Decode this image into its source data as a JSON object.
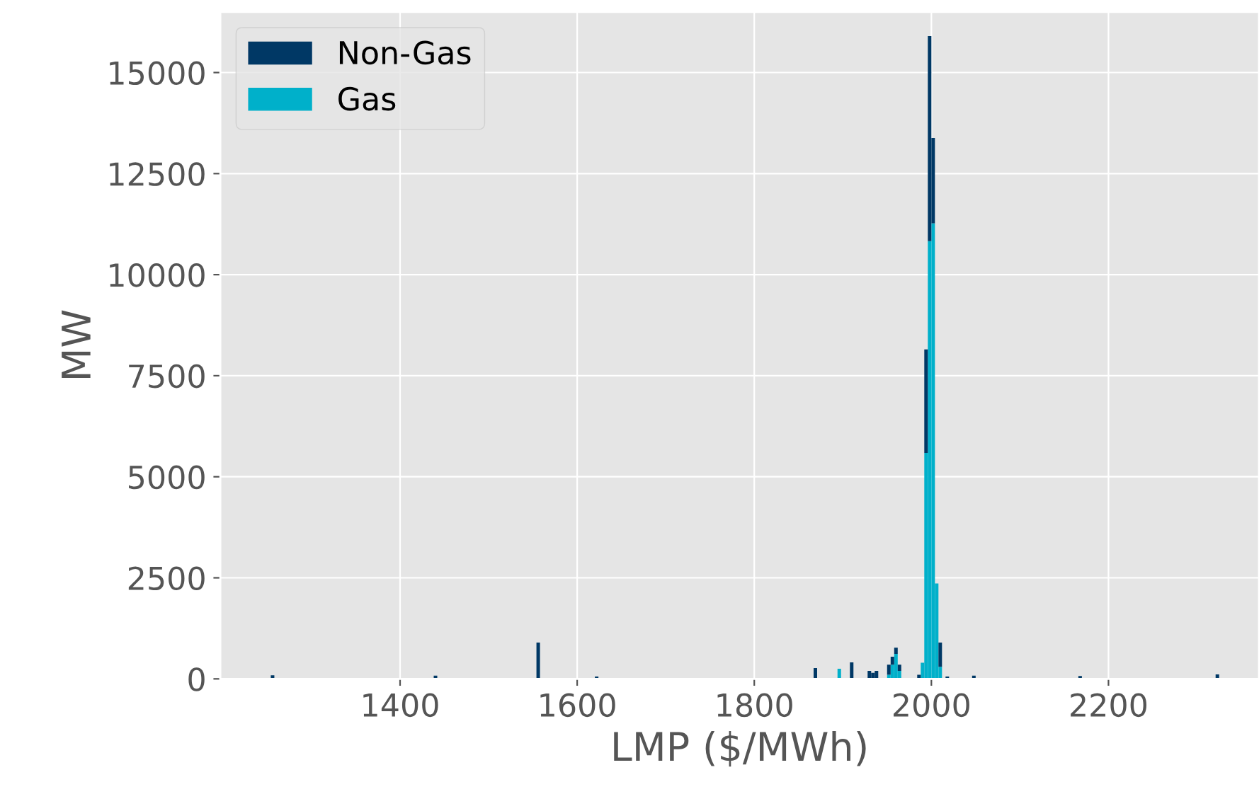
{
  "chart_data": {
    "type": "bar",
    "stacked": true,
    "xlabel": "LMP ($/MWh)",
    "ylabel": "MW",
    "x": [
      1256,
      1440,
      1556,
      1622,
      1869,
      1896,
      1910,
      1930,
      1934,
      1938,
      1952,
      1956,
      1960,
      1964,
      1986,
      1990,
      1994,
      1998,
      2002,
      2006,
      2010,
      2018,
      2048,
      2168,
      2323
    ],
    "series": [
      {
        "name": "Gas",
        "color": "#00b0ca",
        "values": [
          0,
          0,
          0,
          0,
          0,
          250,
          0,
          0,
          0,
          0,
          100,
          350,
          620,
          200,
          0,
          400,
          5590,
          10830,
          11270,
          2360,
          300,
          0,
          0,
          0,
          0
        ]
      },
      {
        "name": "Non-Gas",
        "color": "#003865",
        "values": [
          90,
          80,
          900,
          60,
          270,
          0,
          410,
          200,
          150,
          200,
          250,
          200,
          150,
          150,
          100,
          0,
          2560,
          5070,
          2110,
          0,
          600,
          60,
          80,
          70,
          110
        ]
      }
    ],
    "xlim": [
      1197,
      2370
    ],
    "ylim": [
      0,
      16500
    ],
    "xticks": [
      1400,
      1600,
      1800,
      2000,
      2200
    ],
    "yticks": [
      0,
      2500,
      5000,
      7500,
      10000,
      12500,
      15000
    ],
    "grid": true,
    "legend": "top left"
  }
}
